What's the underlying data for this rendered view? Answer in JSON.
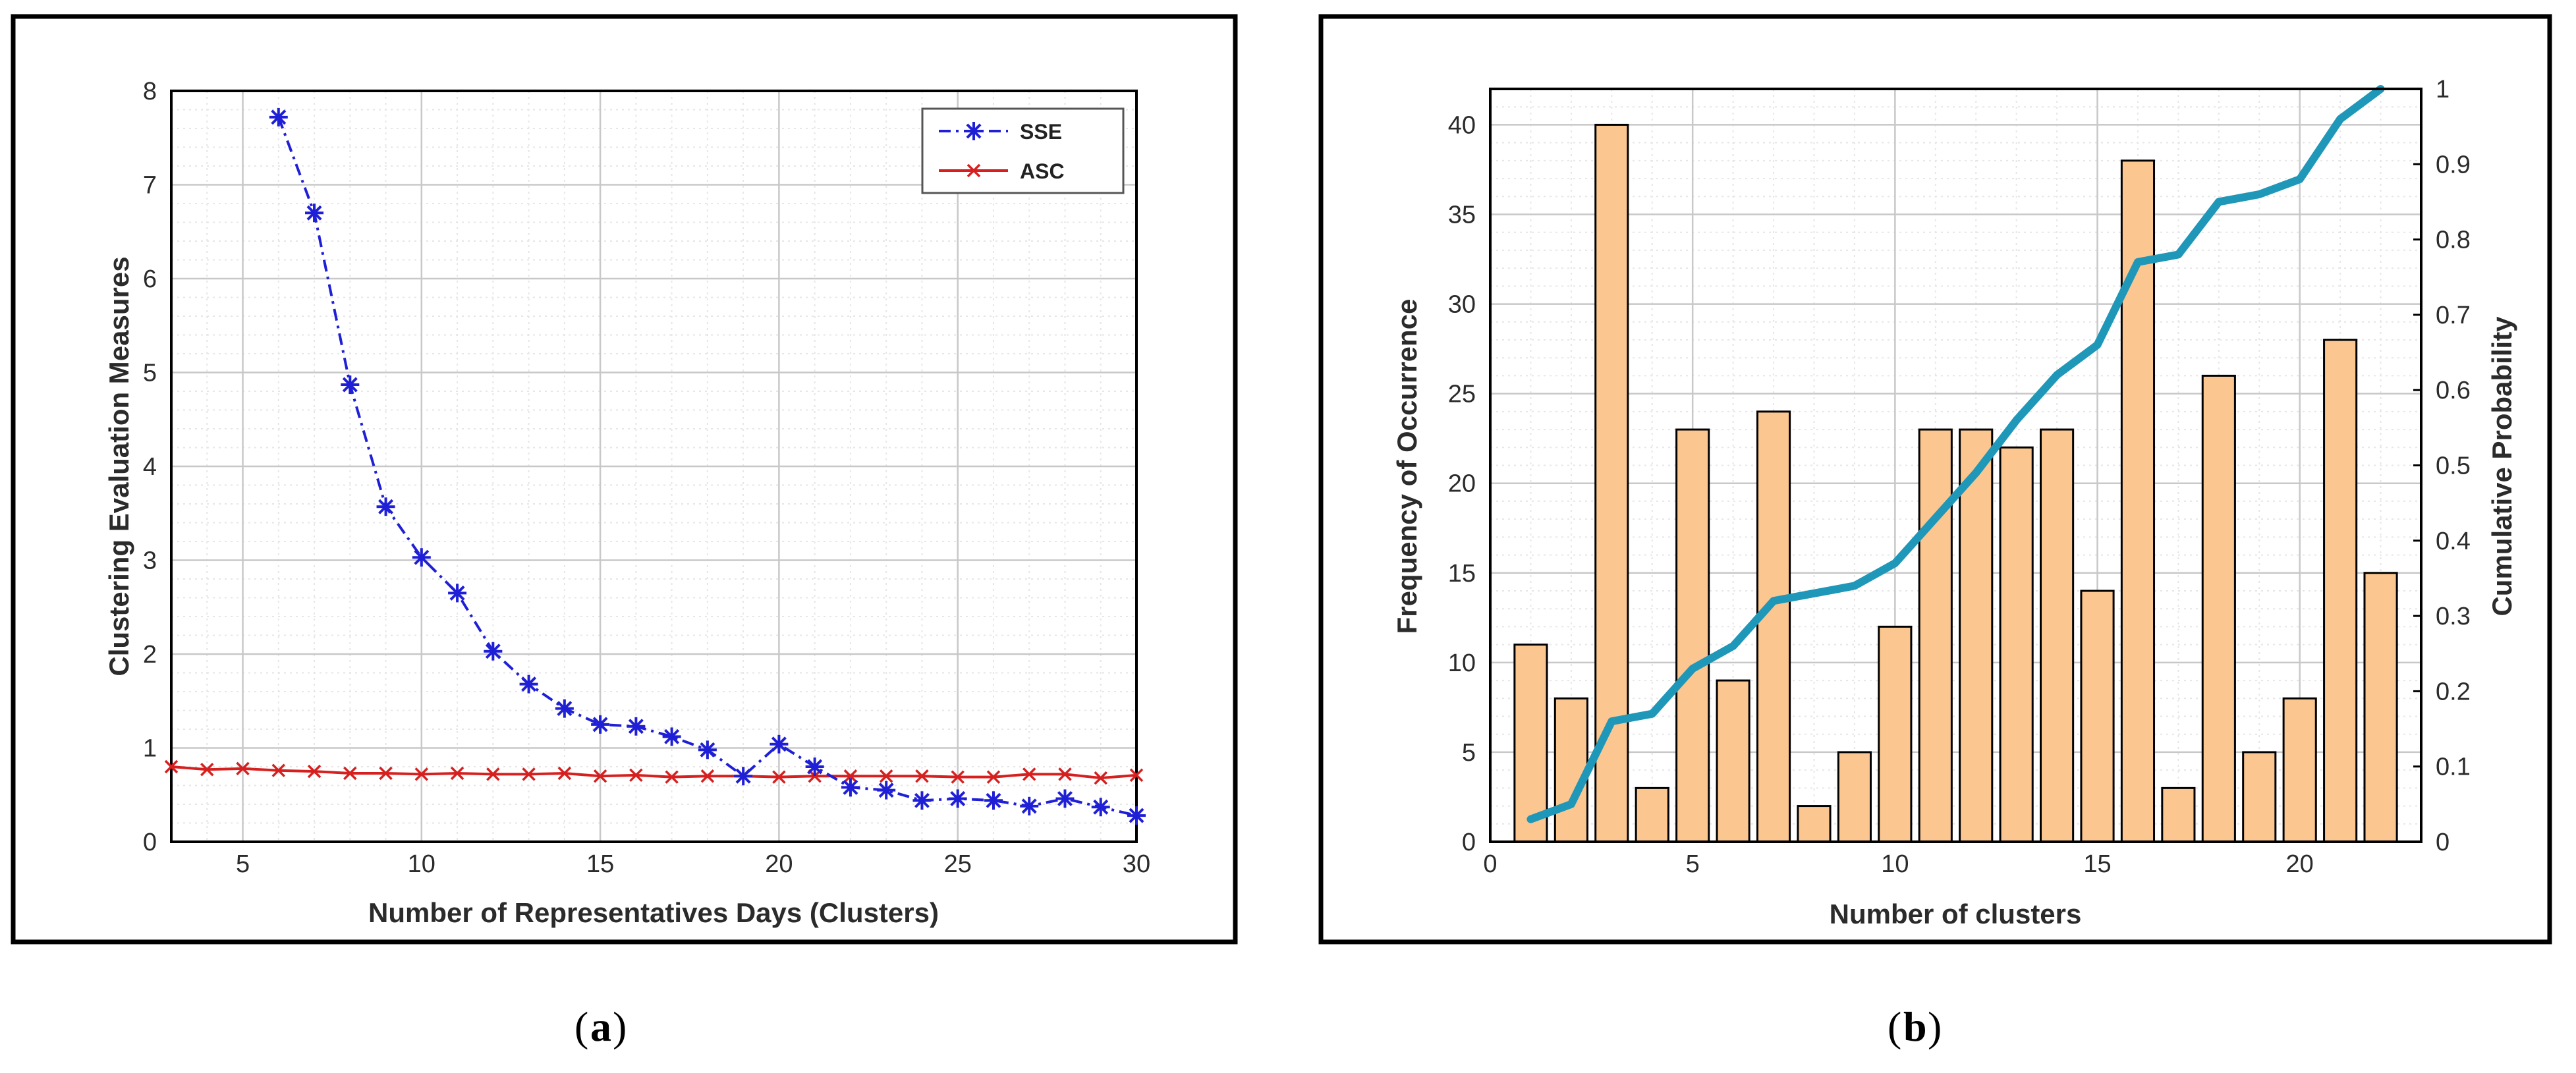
{
  "captions": {
    "a": "a",
    "b": "b"
  },
  "colors": {
    "sse": "#1f1fd6",
    "asc": "#d62020",
    "bar_fill": "#fbc68f",
    "bar_edge": "#000000",
    "cum_line": "#1f97b8",
    "grid_major": "#c8c8c8",
    "grid_minor": "#e6e6e6"
  },
  "chart_data": [
    {
      "id": "a",
      "type": "line",
      "title": "",
      "xlabel": "Number of Representatives Days (Clusters)",
      "ylabel": "Clustering Evaluation Measures",
      "xlim": [
        3,
        30
      ],
      "ylim": [
        0,
        8
      ],
      "xticks": [
        5,
        10,
        15,
        20,
        25,
        30
      ],
      "yticks": [
        0,
        1,
        2,
        3,
        4,
        5,
        6,
        7,
        8
      ],
      "grid": true,
      "legend_position": "top-right",
      "series": [
        {
          "name": "SSE",
          "style": "dash-dot",
          "marker": "asterisk",
          "x": [
            6,
            7,
            8,
            9,
            10,
            11,
            12,
            13,
            14,
            15,
            16,
            17,
            18,
            19,
            20,
            21,
            22,
            23,
            24,
            25,
            26,
            27,
            28,
            29,
            30
          ],
          "y": [
            7.72,
            6.7,
            4.87,
            3.57,
            3.03,
            2.65,
            2.03,
            1.68,
            1.42,
            1.25,
            1.23,
            1.12,
            0.98,
            0.7,
            1.04,
            0.8,
            0.58,
            0.55,
            0.44,
            0.46,
            0.44,
            0.38,
            0.46,
            0.37,
            0.28
          ]
        },
        {
          "name": "ASC",
          "style": "solid",
          "marker": "x",
          "x": [
            3,
            4,
            5,
            6,
            7,
            8,
            9,
            10,
            11,
            12,
            13,
            14,
            15,
            16,
            17,
            18,
            19,
            20,
            21,
            22,
            23,
            24,
            25,
            26,
            27,
            28,
            29,
            30
          ],
          "y": [
            0.8,
            0.77,
            0.78,
            0.76,
            0.75,
            0.73,
            0.73,
            0.72,
            0.73,
            0.72,
            0.72,
            0.73,
            0.7,
            0.71,
            0.69,
            0.7,
            0.7,
            0.69,
            0.7,
            0.7,
            0.7,
            0.7,
            0.69,
            0.69,
            0.72,
            0.72,
            0.68,
            0.71
          ]
        }
      ]
    },
    {
      "id": "b",
      "type": "bar",
      "title": "",
      "xlabel": "Number of clusters",
      "ylabel": "Frequency of Occurrence",
      "y2label": "Cumulative Probability",
      "xlim": [
        0,
        23
      ],
      "ylim": [
        0,
        42
      ],
      "y2lim": [
        0,
        1
      ],
      "xticks": [
        0,
        5,
        10,
        15,
        20
      ],
      "yticks": [
        0,
        5,
        10,
        15,
        20,
        25,
        30,
        35,
        40
      ],
      "y2ticks": [
        "0",
        "0.1",
        "0.2",
        "0.3",
        "0.4",
        "0.5",
        "0.6",
        "0.7",
        "0.8",
        "0.9",
        "1"
      ],
      "grid": true,
      "categories": [
        1,
        2,
        3,
        4,
        5,
        6,
        7,
        8,
        9,
        10,
        11,
        12,
        13,
        14,
        15,
        16,
        17,
        18,
        19,
        20,
        21,
        22
      ],
      "values": [
        11,
        8,
        40,
        3,
        23,
        9,
        24,
        2,
        5,
        12,
        23,
        23,
        22,
        23,
        14,
        38,
        3,
        26,
        5,
        8,
        28,
        15
      ],
      "cumulative": {
        "name": "Cumulative Probability",
        "x": [
          1,
          2,
          3,
          4,
          5,
          6,
          7,
          8,
          9,
          10,
          11,
          12,
          13,
          14,
          15,
          16,
          17,
          18,
          19,
          20,
          21,
          22
        ],
        "y": [
          0.03,
          0.05,
          0.16,
          0.17,
          0.23,
          0.26,
          0.32,
          0.33,
          0.34,
          0.37,
          0.43,
          0.49,
          0.56,
          0.62,
          0.66,
          0.77,
          0.78,
          0.85,
          0.86,
          0.88,
          0.96,
          1.0
        ]
      }
    }
  ]
}
